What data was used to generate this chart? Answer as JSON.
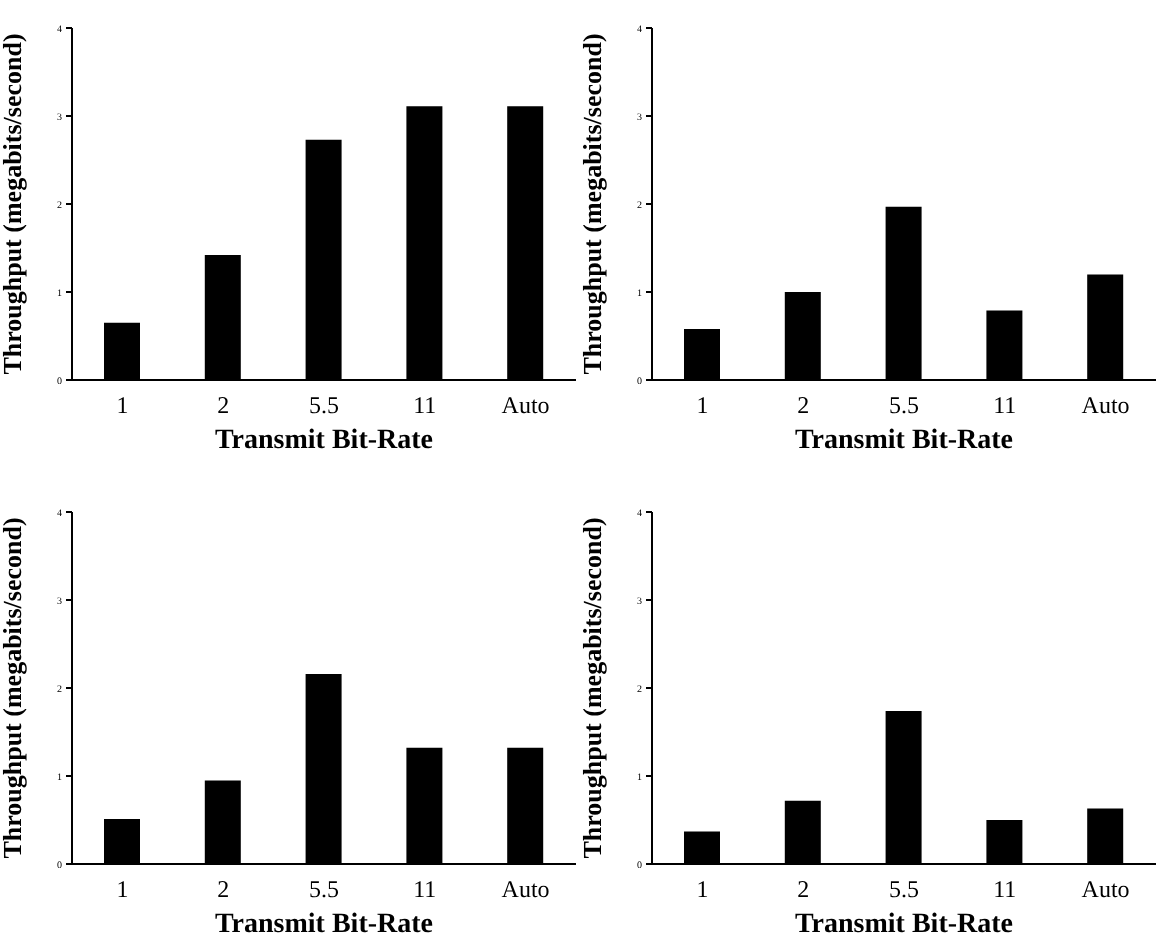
{
  "chart_data": [
    {
      "type": "bar",
      "categories": [
        "1",
        "2",
        "5.5",
        "11",
        "Auto"
      ],
      "values": [
        0.65,
        1.42,
        2.73,
        3.11,
        3.11
      ],
      "color": "#000000",
      "xlabel": "Transmit Bit-Rate",
      "ylabel": "Throughput (megabits/second)",
      "ylim": [
        0,
        4
      ],
      "yticks": [
        0,
        1,
        2,
        3,
        4
      ]
    },
    {
      "type": "bar",
      "categories": [
        "1",
        "2",
        "5.5",
        "11",
        "Auto"
      ],
      "values": [
        0.58,
        1.0,
        1.97,
        0.79,
        1.2
      ],
      "color": "#000000",
      "xlabel": "Transmit Bit-Rate",
      "ylabel": "Throughput (megabits/second)",
      "ylim": [
        0,
        4
      ],
      "yticks": [
        0,
        1,
        2,
        3,
        4
      ]
    },
    {
      "type": "bar",
      "categories": [
        "1",
        "2",
        "5.5",
        "11",
        "Auto"
      ],
      "values": [
        0.51,
        0.95,
        2.16,
        1.32,
        1.32
      ],
      "color": "#000000",
      "xlabel": "Transmit Bit-Rate",
      "ylabel": "Throughput (megabits/second)",
      "ylim": [
        0,
        4
      ],
      "yticks": [
        0,
        1,
        2,
        3,
        4
      ]
    },
    {
      "type": "bar",
      "categories": [
        "1",
        "2",
        "5.5",
        "11",
        "Auto"
      ],
      "values": [
        0.37,
        0.72,
        1.74,
        0.5,
        0.63
      ],
      "color": "#000000",
      "xlabel": "Transmit Bit-Rate",
      "ylabel": "Throughput (megabits/second)",
      "ylim": [
        0,
        4
      ],
      "yticks": [
        0,
        1,
        2,
        3,
        4
      ]
    }
  ]
}
